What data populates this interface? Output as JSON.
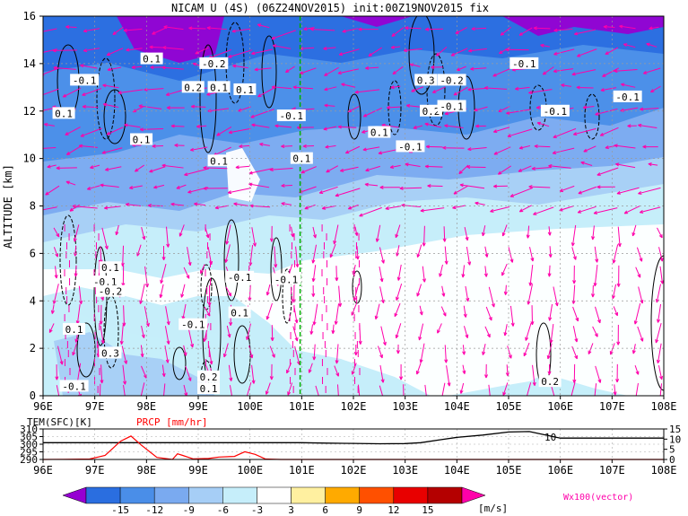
{
  "chart_data": [
    {
      "type": "heatmap",
      "title": "NICAM U (4S) (06Z24NOV2015) init:00Z19NOV2015 fix",
      "ylabel": "ALTITUDE [km]",
      "xlim": [
        96,
        108
      ],
      "ylim": [
        0,
        16
      ],
      "x_ticks": [
        "96E",
        "97E",
        "98E",
        "99E",
        "100E",
        "101E",
        "102E",
        "103E",
        "104E",
        "105E",
        "106E",
        "107E",
        "108E"
      ],
      "y_ticks": [
        "0",
        "2",
        "4",
        "6",
        "8",
        "10",
        "12",
        "14",
        "16"
      ],
      "grid": true,
      "marker_line_lon": 100.97,
      "overlays": [
        "shaded U wind",
        "contours",
        "wind vectors (Wx100)"
      ],
      "contour_labels": [
        {
          "text": "0.1",
          "x": 98.1,
          "y": 14.2
        },
        {
          "text": "-0.1",
          "x": 96.8,
          "y": 13.3
        },
        {
          "text": "0.1",
          "x": 96.4,
          "y": 11.9
        },
        {
          "text": "-0.2",
          "x": 99.3,
          "y": 14.0
        },
        {
          "text": "0.2",
          "x": 98.9,
          "y": 13.0
        },
        {
          "text": "0.1",
          "x": 99.4,
          "y": 13.0
        },
        {
          "text": "0.1",
          "x": 99.9,
          "y": 12.9
        },
        {
          "text": "-0.1",
          "x": 100.8,
          "y": 11.8
        },
        {
          "text": "0.1",
          "x": 97.9,
          "y": 10.8
        },
        {
          "text": "0.1",
          "x": 99.4,
          "y": 9.9
        },
        {
          "text": "0.1",
          "x": 101.0,
          "y": 10.0
        },
        {
          "text": "0.1",
          "x": 102.5,
          "y": 11.1
        },
        {
          "text": "-0.1",
          "x": 103.1,
          "y": 10.5
        },
        {
          "text": "0.3",
          "x": 103.4,
          "y": 13.3
        },
        {
          "text": "-0.2",
          "x": 103.9,
          "y": 13.3
        },
        {
          "text": "0.2",
          "x": 103.5,
          "y": 12.0
        },
        {
          "text": "-0.1",
          "x": 103.9,
          "y": 12.2
        },
        {
          "text": "-0.1",
          "x": 105.3,
          "y": 14.0
        },
        {
          "text": "-0.1",
          "x": 105.9,
          "y": 12.0
        },
        {
          "text": "-0.1",
          "x": 107.3,
          "y": 12.6
        },
        {
          "text": "0.1",
          "x": 97.3,
          "y": 5.4
        },
        {
          "text": "-0.1",
          "x": 97.2,
          "y": 4.8
        },
        {
          "text": "-0.2",
          "x": 97.3,
          "y": 4.4
        },
        {
          "text": "-0.1",
          "x": 99.8,
          "y": 5.0
        },
        {
          "text": "-0.1",
          "x": 100.7,
          "y": 4.9
        },
        {
          "text": "0.1",
          "x": 96.6,
          "y": 2.8
        },
        {
          "text": "-0.1",
          "x": 98.9,
          "y": 3.0
        },
        {
          "text": "0.1",
          "x": 99.8,
          "y": 3.5
        },
        {
          "text": "0.3",
          "x": 97.3,
          "y": 1.8
        },
        {
          "text": "-0.1",
          "x": 96.6,
          "y": 0.4
        },
        {
          "text": "0.2",
          "x": 99.2,
          "y": 0.8
        },
        {
          "text": "0.1",
          "x": 99.2,
          "y": 0.3
        },
        {
          "text": "0.2",
          "x": 105.8,
          "y": 0.6
        }
      ]
    },
    {
      "type": "line",
      "xlim": [
        96,
        108
      ],
      "x_ticks": [
        "96E",
        "97E",
        "98E",
        "99E",
        "100E",
        "101E",
        "102E",
        "103E",
        "104E",
        "105E",
        "106E",
        "107E",
        "108E"
      ],
      "left_axis": {
        "label": "TEM(SFC)[K]",
        "ticks": [
          "310",
          "305",
          "300",
          "295",
          "290"
        ],
        "ylim": [
          290,
          310
        ]
      },
      "right_axis": {
        "label": "PRCP [mm/hr]",
        "ticks": [
          "15",
          "10",
          "5",
          "0"
        ],
        "ylim": [
          0,
          15
        ]
      },
      "line_label": "10",
      "series": [
        {
          "name": "TEM(SFC)[K]",
          "color": "#000000",
          "x": [
            96,
            97,
            98,
            99,
            100,
            100.5,
            101,
            101.5,
            102,
            102.5,
            103,
            103.3,
            103.7,
            104,
            104.5,
            105,
            105.4,
            106,
            107,
            108
          ],
          "y": [
            301,
            301,
            301,
            301,
            301,
            301,
            301,
            300.7,
            300.5,
            300.3,
            300.4,
            301,
            303,
            304.5,
            306,
            308,
            308.3,
            304,
            304,
            304
          ]
        },
        {
          "name": "PRCP [mm/hr]",
          "color": "#ff0000",
          "x": [
            96,
            96.4,
            96.9,
            97.2,
            97.5,
            97.7,
            97.9,
            98.2,
            98.5,
            98.6,
            98.7,
            98.9,
            99.2,
            99.4,
            99.7,
            99.9,
            100.1,
            100.3,
            100.6,
            101,
            102,
            104,
            108
          ],
          "y": [
            0,
            0.1,
            0.2,
            2,
            9,
            11.5,
            7,
            1,
            0,
            2.8,
            2,
            0.3,
            0.5,
            1.2,
            1.5,
            3.8,
            2.5,
            0.2,
            0,
            0,
            0,
            0,
            0
          ]
        }
      ]
    }
  ],
  "colorbar": {
    "ticks": [
      "-15",
      "-12",
      "-9",
      "-6",
      "-3",
      "3",
      "6",
      "9",
      "12",
      "15"
    ],
    "unit": "[m/s]",
    "colors": [
      "#9600d2",
      "#2a6ee0",
      "#4a8ee8",
      "#7aaaf0",
      "#a6cef6",
      "#c6eefa",
      "#ffffff",
      "#fff0a0",
      "#ffaa00",
      "#ff5000",
      "#e80000",
      "#b40000"
    ],
    "extend_left": "#9600d2",
    "extend_right": "#ff00aa"
  },
  "vector_legend": "Wx100(vector)"
}
